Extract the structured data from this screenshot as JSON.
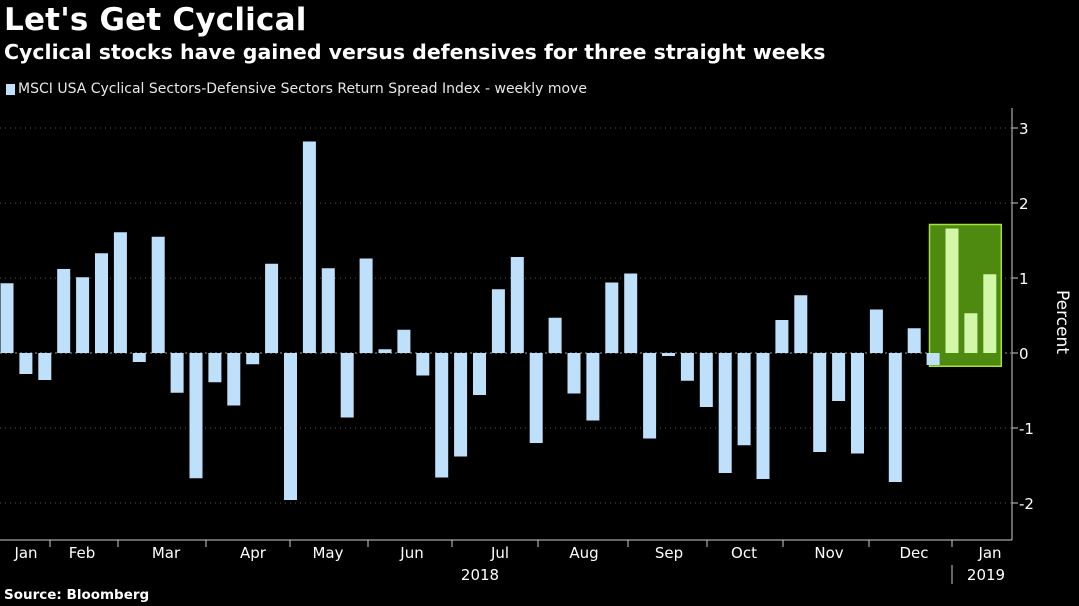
{
  "chart_data": {
    "type": "bar",
    "title": "Let's Get Cyclical",
    "subtitle": "Cyclical stocks have gained versus defensives for three straight weeks",
    "legend": [
      "MSCI USA Cyclical Sectors-Defensive Sectors Return Spread Index - weekly move"
    ],
    "ylabel": "Percent",
    "xlabel": "",
    "ylim": [
      -2.5,
      3.25
    ],
    "yticks": [
      "3",
      "2",
      "1",
      "0",
      "-1",
      "-2"
    ],
    "ytick_values": [
      3,
      2,
      1,
      0,
      -1,
      -2
    ],
    "months": [
      "Jan",
      "Feb",
      "Mar",
      "Apr",
      "May",
      "Jun",
      "Jul",
      "Aug",
      "Sep",
      "Oct",
      "Nov",
      "Dec",
      "Jan"
    ],
    "years": [
      "2018",
      "2019"
    ],
    "values": [
      0.93,
      -0.28,
      -0.36,
      1.12,
      1.01,
      1.33,
      1.61,
      -0.12,
      1.55,
      -0.53,
      -1.67,
      -0.39,
      -0.7,
      -0.15,
      1.19,
      -1.96,
      2.82,
      1.13,
      -0.86,
      1.26,
      0.05,
      0.31,
      -0.3,
      -1.66,
      -1.38,
      -0.56,
      0.85,
      1.28,
      -1.2,
      0.47,
      -0.54,
      -0.9,
      0.94,
      1.06,
      -1.14,
      -0.04,
      -0.37,
      -0.72,
      -1.6,
      -1.23,
      -1.68,
      0.44,
      0.77,
      -1.32,
      -0.64,
      -1.34,
      0.58,
      -1.72,
      0.33,
      -0.16,
      1.66,
      0.53,
      1.05
    ],
    "highlight_last_n": 3,
    "bar_color": "#bfe0fb",
    "highlight_bar_color": "#d3f7a8",
    "highlight_box_color": "#4e8a10",
    "highlight_box_border": "#a6e03c",
    "grid": true,
    "legend_position": "top-left"
  },
  "source": "Source: Bloomberg",
  "colors": {
    "background": "#000000",
    "grid": "#555555",
    "axis": "#cccccc"
  }
}
